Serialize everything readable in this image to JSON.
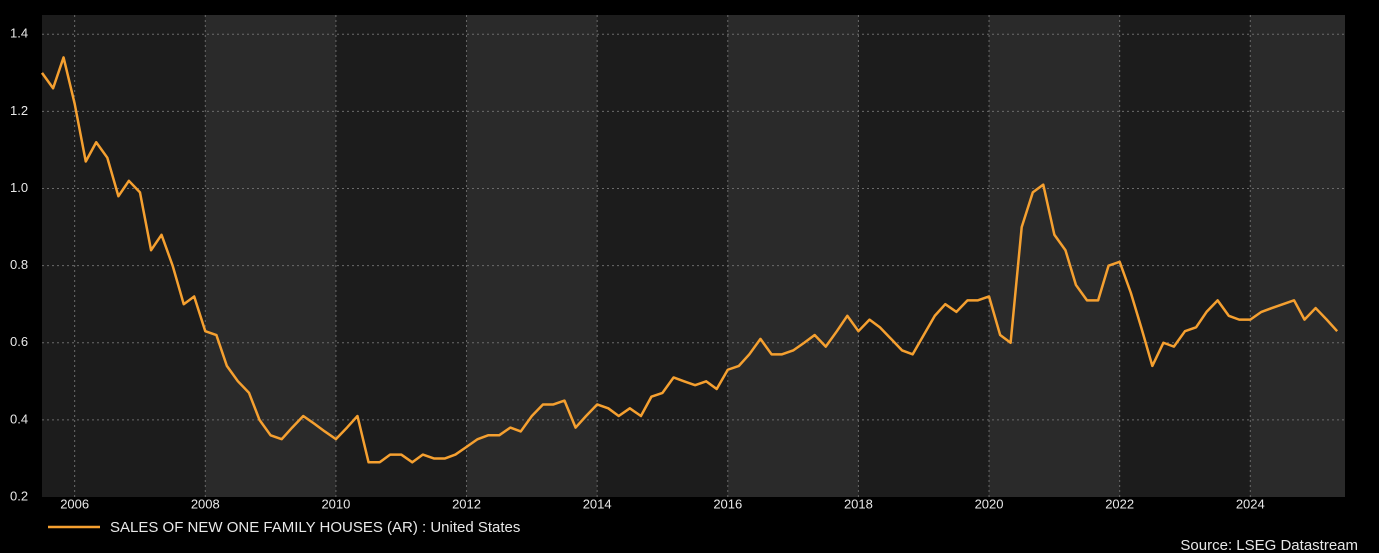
{
  "chart_data": {
    "type": "line",
    "x": [
      2005.5,
      2005.67,
      2005.83,
      2006.0,
      2006.17,
      2006.33,
      2006.5,
      2006.67,
      2006.83,
      2007.0,
      2007.17,
      2007.33,
      2007.5,
      2007.67,
      2007.83,
      2008.0,
      2008.17,
      2008.33,
      2008.5,
      2008.67,
      2008.83,
      2009.0,
      2009.17,
      2009.33,
      2009.5,
      2009.67,
      2009.83,
      2010.0,
      2010.17,
      2010.33,
      2010.5,
      2010.67,
      2010.83,
      2011.0,
      2011.17,
      2011.33,
      2011.5,
      2011.67,
      2011.83,
      2012.0,
      2012.17,
      2012.33,
      2012.5,
      2012.67,
      2012.83,
      2013.0,
      2013.17,
      2013.33,
      2013.5,
      2013.67,
      2013.83,
      2014.0,
      2014.17,
      2014.33,
      2014.5,
      2014.67,
      2014.83,
      2015.0,
      2015.17,
      2015.33,
      2015.5,
      2015.67,
      2015.83,
      2016.0,
      2016.17,
      2016.33,
      2016.5,
      2016.67,
      2016.83,
      2017.0,
      2017.17,
      2017.33,
      2017.5,
      2017.67,
      2017.83,
      2018.0,
      2018.17,
      2018.33,
      2018.5,
      2018.67,
      2018.83,
      2019.0,
      2019.17,
      2019.33,
      2019.5,
      2019.67,
      2019.83,
      2020.0,
      2020.17,
      2020.33,
      2020.5,
      2020.67,
      2020.83,
      2021.0,
      2021.17,
      2021.33,
      2021.5,
      2021.67,
      2021.83,
      2022.0,
      2022.17,
      2022.33,
      2022.5,
      2022.67,
      2022.83,
      2023.0,
      2023.17,
      2023.33,
      2023.5,
      2023.67,
      2023.83,
      2024.0,
      2024.17,
      2024.33,
      2024.5,
      2024.67,
      2024.83,
      2025.0,
      2025.17,
      2025.33
    ],
    "series": [
      {
        "name": "SALES OF NEW ONE FAMILY HOUSES (AR) : United States",
        "color": "#f5a030",
        "values": [
          1.3,
          1.26,
          1.34,
          1.22,
          1.07,
          1.12,
          1.08,
          0.98,
          1.02,
          0.99,
          0.84,
          0.88,
          0.8,
          0.7,
          0.72,
          0.63,
          0.62,
          0.54,
          0.5,
          0.47,
          0.4,
          0.36,
          0.35,
          0.38,
          0.41,
          0.39,
          0.37,
          0.35,
          0.38,
          0.41,
          0.29,
          0.29,
          0.31,
          0.31,
          0.29,
          0.31,
          0.3,
          0.3,
          0.31,
          0.33,
          0.35,
          0.36,
          0.36,
          0.38,
          0.37,
          0.41,
          0.44,
          0.44,
          0.45,
          0.38,
          0.41,
          0.44,
          0.43,
          0.41,
          0.43,
          0.41,
          0.46,
          0.47,
          0.51,
          0.5,
          0.49,
          0.5,
          0.48,
          0.53,
          0.54,
          0.57,
          0.61,
          0.57,
          0.57,
          0.58,
          0.6,
          0.62,
          0.59,
          0.63,
          0.67,
          0.63,
          0.66,
          0.64,
          0.61,
          0.58,
          0.57,
          0.62,
          0.67,
          0.7,
          0.68,
          0.71,
          0.71,
          0.72,
          0.62,
          0.6,
          0.9,
          0.99,
          1.01,
          0.88,
          0.84,
          0.75,
          0.71,
          0.71,
          0.8,
          0.81,
          0.73,
          0.64,
          0.54,
          0.6,
          0.59,
          0.63,
          0.64,
          0.68,
          0.71,
          0.67,
          0.66,
          0.66,
          0.68,
          0.69,
          0.7,
          0.71,
          0.66,
          0.69,
          0.66,
          0.63
        ]
      }
    ],
    "xlim": [
      2005.5,
      2025.45
    ],
    "xticks": [
      2006,
      2008,
      2010,
      2012,
      2014,
      2016,
      2018,
      2020,
      2022,
      2024
    ],
    "ylim": [
      0.2,
      1.45
    ],
    "yticks": [
      0.2,
      0.4,
      0.6,
      0.8,
      {
        "value": 1,
        "label": "1.0"
      },
      1.2,
      1.4
    ],
    "grid": true,
    "legend": "bottom-left",
    "source": "Source: LSEG Datastream"
  }
}
